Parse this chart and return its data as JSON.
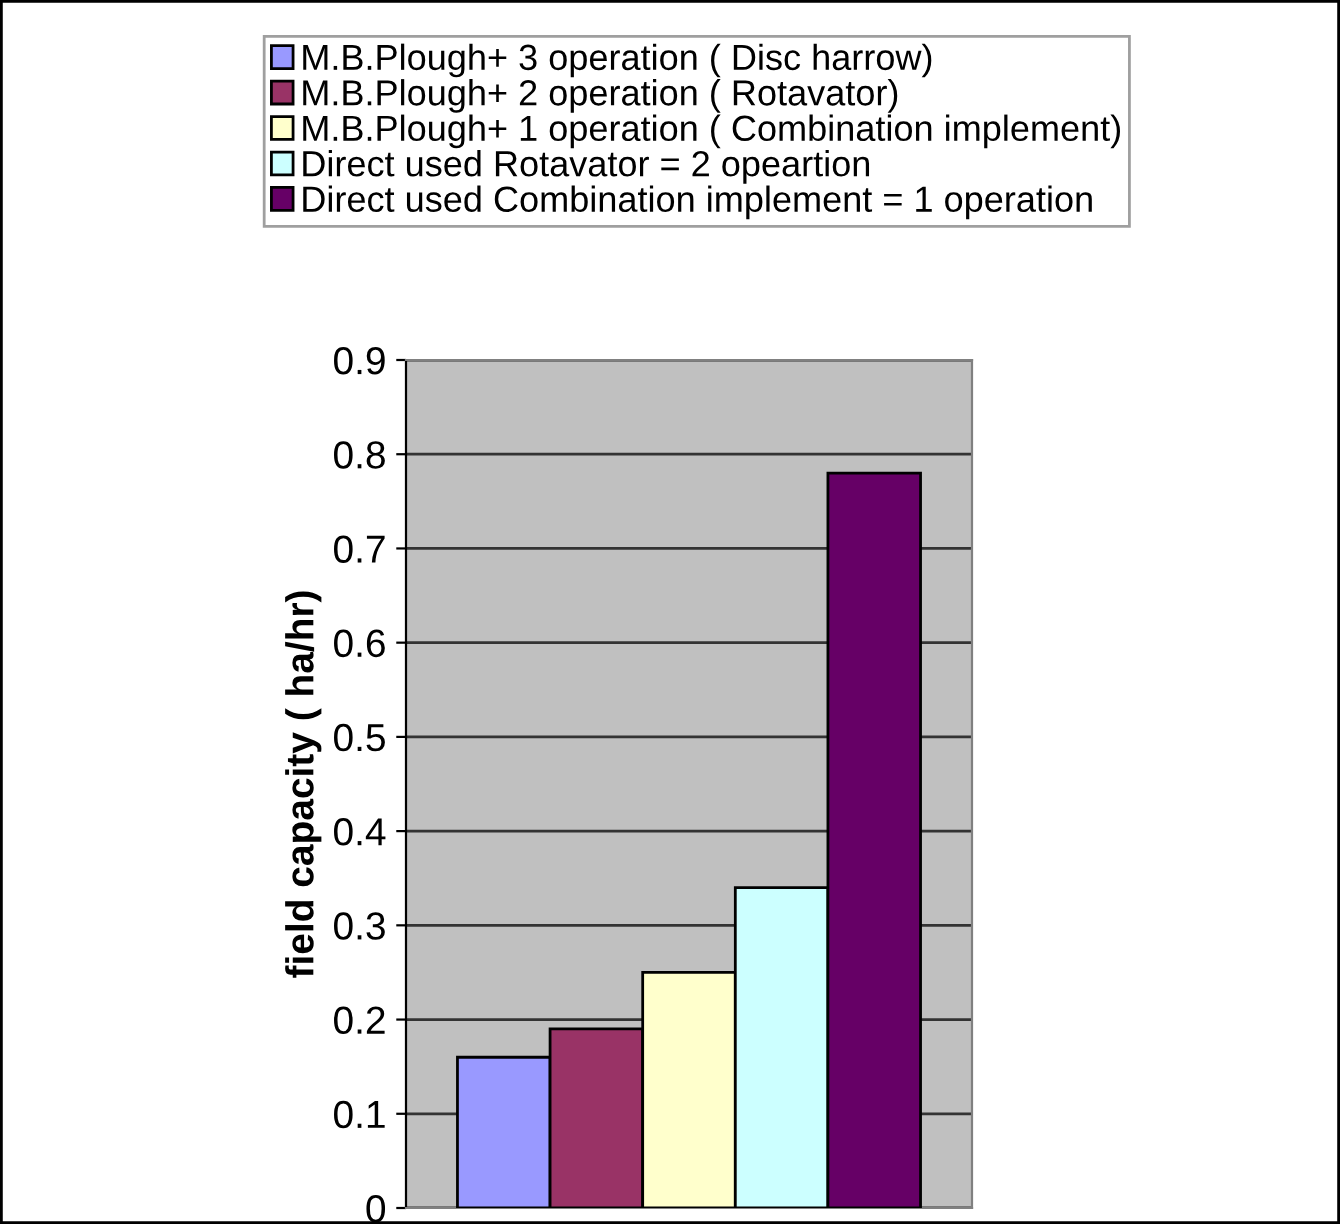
{
  "chart_data": {
    "type": "bar",
    "ylabel": "field capacity ( ha/hr)",
    "categories": [
      null
    ],
    "series": [
      {
        "name": "M.B.Plough+ 3 operation ( Disc harrow)",
        "color": "#9999ff",
        "values": [
          0.16
        ]
      },
      {
        "name": "M.B.Plough+ 2 operation ( Rotavator)",
        "color": "#993366",
        "values": [
          0.19
        ]
      },
      {
        "name": "M.B.Plough+ 1 operation ( Combination implement)",
        "color": "#ffffcc",
        "values": [
          0.25
        ]
      },
      {
        "name": "Direct used Rotavator = 2 opeartion",
        "color": "#ccffff",
        "values": [
          0.34
        ]
      },
      {
        "name": "Direct used Combination implement = 1 operation",
        "color": "#660066",
        "values": [
          0.78
        ]
      }
    ],
    "ylim": [
      0,
      0.9
    ],
    "yticks": [
      0,
      0.1,
      0.2,
      0.3,
      0.4,
      0.5,
      0.6,
      0.7,
      0.8,
      0.9
    ],
    "grid": "y",
    "legend": "top"
  }
}
